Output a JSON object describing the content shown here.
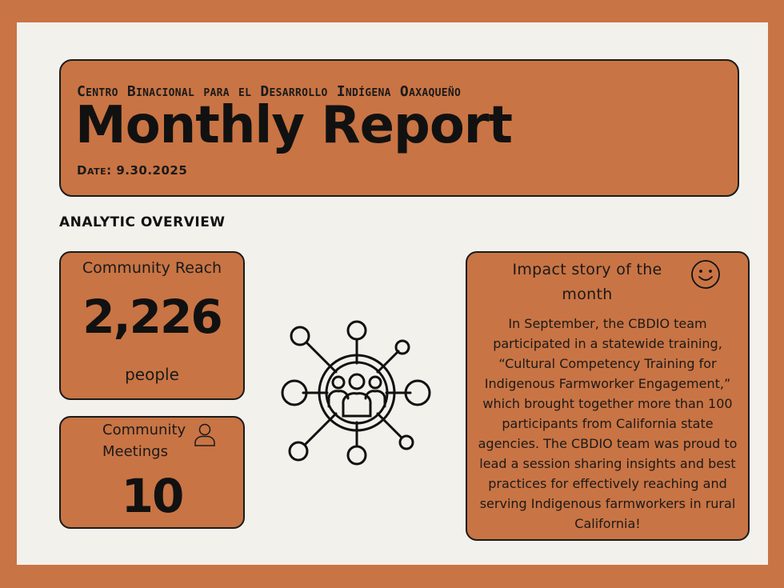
{
  "header": {
    "organization": "Centro Binacional para el Desarrollo Indígena Oaxaqueño",
    "title": "Monthly Report",
    "date": "Date: 9.30.2025"
  },
  "section": {
    "label": "ANALYTIC OVERVIEW"
  },
  "community_reach": {
    "label": "Community Reach",
    "value": "2,226",
    "unit": "people"
  },
  "community_meetings": {
    "label": "Community Meetings",
    "value": "10",
    "icon": "person-icon"
  },
  "network_graphic": {
    "icon": "community-network-icon"
  },
  "impact_story": {
    "heading": "Impact story of the month",
    "icon": "smiley-face-icon",
    "body": "In September, the CBDIO team participated in a statewide training, “Cultural Competency Training for Indigenous Farmworker Engagement,” which brought together more than 100 participants from California state agencies. The CBDIO team was proud to lead a session sharing insights and best practices for effectively reaching and serving Indigenous farmworkers in rural California!"
  },
  "colors": {
    "frame": "#c97444",
    "paper": "#f3f1ec",
    "card": "#c97444",
    "ink": "#111111"
  }
}
